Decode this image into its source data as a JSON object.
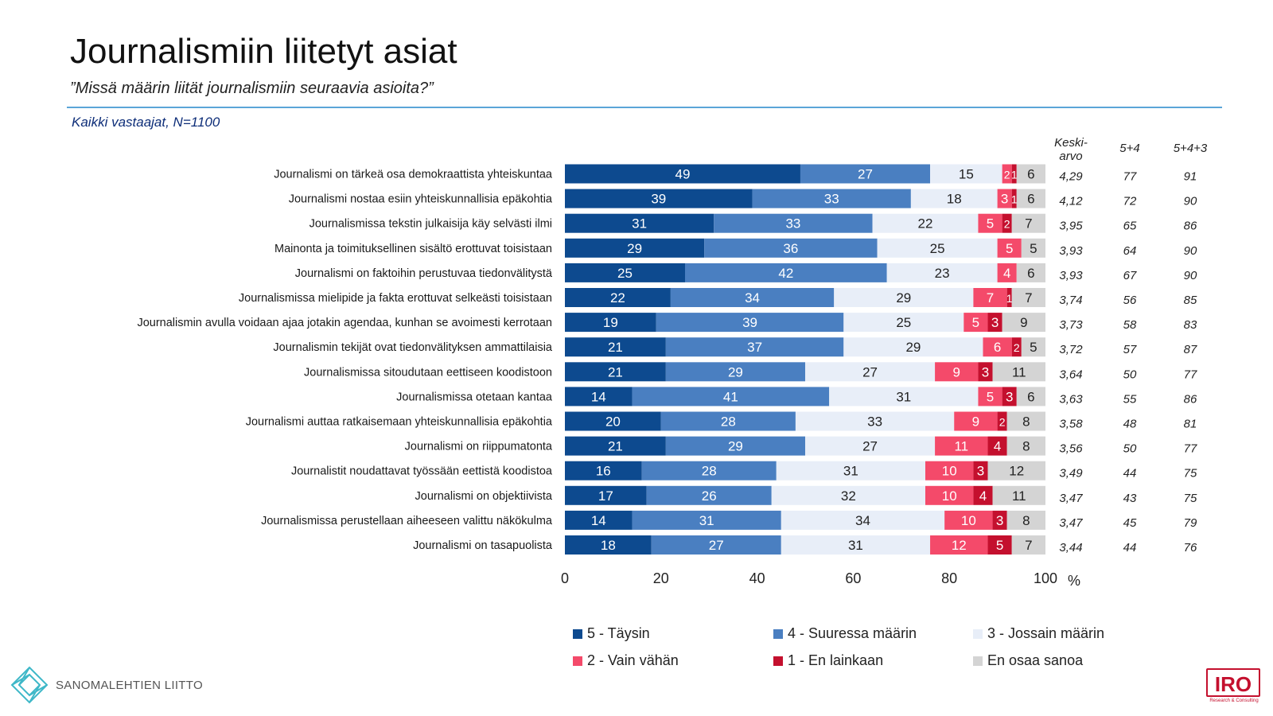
{
  "header": {
    "title": "Journalismiin liitetyt asiat",
    "subtitle": "”Missä määrin liität journalismiin seuraavia asioita?”",
    "base": "Kaikki vastaajat, N=1100"
  },
  "columns": {
    "mean_label_line1": "Keski-",
    "mean_label_line2": "arvo",
    "sum54_label": "5+4",
    "sum543_label": "5+4+3"
  },
  "colors": {
    "s5": "#0d4a8f",
    "s4": "#4a7fc1",
    "s3": "#e8eef8",
    "s2": "#f44a6a",
    "s1": "#c4102e",
    "eos": "#d4d4d4",
    "rule": "#5aa5d8"
  },
  "chart_data": {
    "type": "bar",
    "orientation": "horizontal",
    "stacked": true,
    "xlim": [
      0,
      100
    ],
    "xticks": [
      "0",
      "20",
      "40",
      "60",
      "80",
      "100"
    ],
    "xunit": "%",
    "categories": [
      "Journalismi on tärkeä osa demokraattista yhteiskuntaa",
      "Journalismi nostaa esiin yhteiskunnallisia epäkohtia",
      "Journalismissa tekstin julkaisija käy selvästi ilmi",
      "Mainonta ja toimituksellinen sisältö erottuvat toisistaan",
      "Journalismi on faktoihin perustuvaa tiedonvälitystä",
      "Journalismissa mielipide ja fakta erottuvat selkeästi toisistaan",
      "Journalismin avulla voidaan ajaa jotakin agendaa, kunhan se avoimesti kerrotaan",
      "Journalismin tekijät ovat tiedonvälityksen ammattilaisia",
      "Journalismissa sitoudutaan eettiseen koodistoon",
      "Journalismissa otetaan kantaa",
      "Journalismi auttaa ratkaisemaan yhteiskunnallisia epäkohtia",
      "Journalismi on riippumatonta",
      "Journalistit noudattavat työssään eettistä koodistoa",
      "Journalismi on objektiivista",
      "Journalismissa perustellaan aiheeseen valittu näkökulma",
      "Journalismi on tasapuolista"
    ],
    "series": [
      {
        "name": "5 - Täysin",
        "values": [
          49,
          39,
          31,
          29,
          25,
          22,
          19,
          21,
          21,
          14,
          20,
          21,
          16,
          17,
          14,
          18
        ]
      },
      {
        "name": "4 - Suuressa määrin",
        "values": [
          27,
          33,
          33,
          36,
          42,
          34,
          39,
          37,
          29,
          41,
          28,
          29,
          28,
          26,
          31,
          27
        ]
      },
      {
        "name": "3 - Jossain määrin",
        "values": [
          15,
          18,
          22,
          25,
          23,
          29,
          25,
          29,
          27,
          31,
          33,
          27,
          31,
          32,
          34,
          31
        ]
      },
      {
        "name": "2 - Vain vähän",
        "values": [
          2,
          3,
          5,
          5,
          4,
          7,
          5,
          6,
          9,
          5,
          9,
          11,
          10,
          10,
          10,
          12
        ]
      },
      {
        "name": "1 - En lainkaan",
        "values": [
          1,
          1,
          2,
          0,
          0,
          1,
          3,
          2,
          3,
          3,
          2,
          4,
          3,
          4,
          3,
          5
        ]
      },
      {
        "name": "En osaa sanoa",
        "values": [
          6,
          6,
          7,
          5,
          6,
          7,
          9,
          5,
          11,
          6,
          8,
          8,
          12,
          11,
          8,
          7
        ]
      }
    ],
    "mean": [
      "4,29",
      "4,12",
      "3,95",
      "3,93",
      "3,93",
      "3,74",
      "3,73",
      "3,72",
      "3,64",
      "3,63",
      "3,58",
      "3,56",
      "3,49",
      "3,47",
      "3,47",
      "3,44"
    ],
    "sum54": [
      "77",
      "72",
      "65",
      "64",
      "67",
      "56",
      "58",
      "57",
      "50",
      "55",
      "48",
      "50",
      "44",
      "43",
      "45",
      "44"
    ],
    "sum543": [
      "91",
      "90",
      "86",
      "90",
      "90",
      "85",
      "83",
      "87",
      "77",
      "86",
      "81",
      "77",
      "75",
      "75",
      "79",
      "76"
    ],
    "legend_position": "bottom"
  },
  "logos": {
    "left_text": "SANOMALEHTIEN LIITTO",
    "right_text": "IRO",
    "right_sub": "Research & Consulting"
  }
}
